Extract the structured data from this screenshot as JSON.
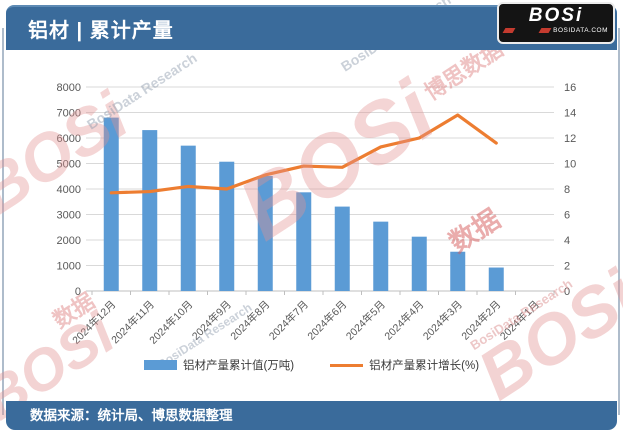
{
  "header": {
    "title": "铝材 | 累计产量",
    "logo": {
      "brand": "BOSi",
      "domain": "BOSIDATA.COM"
    }
  },
  "chart_data": {
    "type": "bar",
    "subtype": "bar+line-combo",
    "title": "铝材 | 累计产量",
    "categories": [
      "2024年12月",
      "2024年11月",
      "2024年10月",
      "2024年9月",
      "2024年8月",
      "2024年7月",
      "2024年6月",
      "2024年5月",
      "2024年4月",
      "2024年3月",
      "2024年2月",
      "2024年1月"
    ],
    "series": [
      {
        "name": "铝材产量累计值(万吨)",
        "type": "bar",
        "axis": "left",
        "color": "#5B9BD5",
        "values": [
          6800,
          6310,
          5700,
          5070,
          4510,
          3870,
          3310,
          2720,
          2130,
          1540,
          920,
          null
        ]
      },
      {
        "name": "铝材产量累计增长(%)",
        "type": "line",
        "axis": "right",
        "color": "#ED7D31",
        "values": [
          7.7,
          7.8,
          8.2,
          8.0,
          9.1,
          9.8,
          9.7,
          11.3,
          12.0,
          13.8,
          11.6,
          null
        ]
      }
    ],
    "left_axis": {
      "min": 0,
      "max": 8000,
      "step": 1000
    },
    "right_axis": {
      "min": 0,
      "max": 16,
      "step": 2
    },
    "grid": true,
    "legend_position": "bottom"
  },
  "footer": {
    "source": "数据来源：统计局、博思数据整理"
  },
  "watermarks": {
    "brand": "BOSi",
    "brand_cn": "博思数据",
    "research": "BosiData Research",
    "domain": "BOSIDATA.COM",
    "data_cn": "数据"
  },
  "colors": {
    "header_bg": "#3A6B9B",
    "bar": "#5B9BD5",
    "line": "#ED7D31",
    "grid": "#D9D9D9",
    "axis_line": "#BFBFBF",
    "axis_text": "#595959",
    "logo_red": "#C43B2F",
    "watermark_pink": "#E59C9C",
    "watermark_gray": "#9AA6B6"
  }
}
